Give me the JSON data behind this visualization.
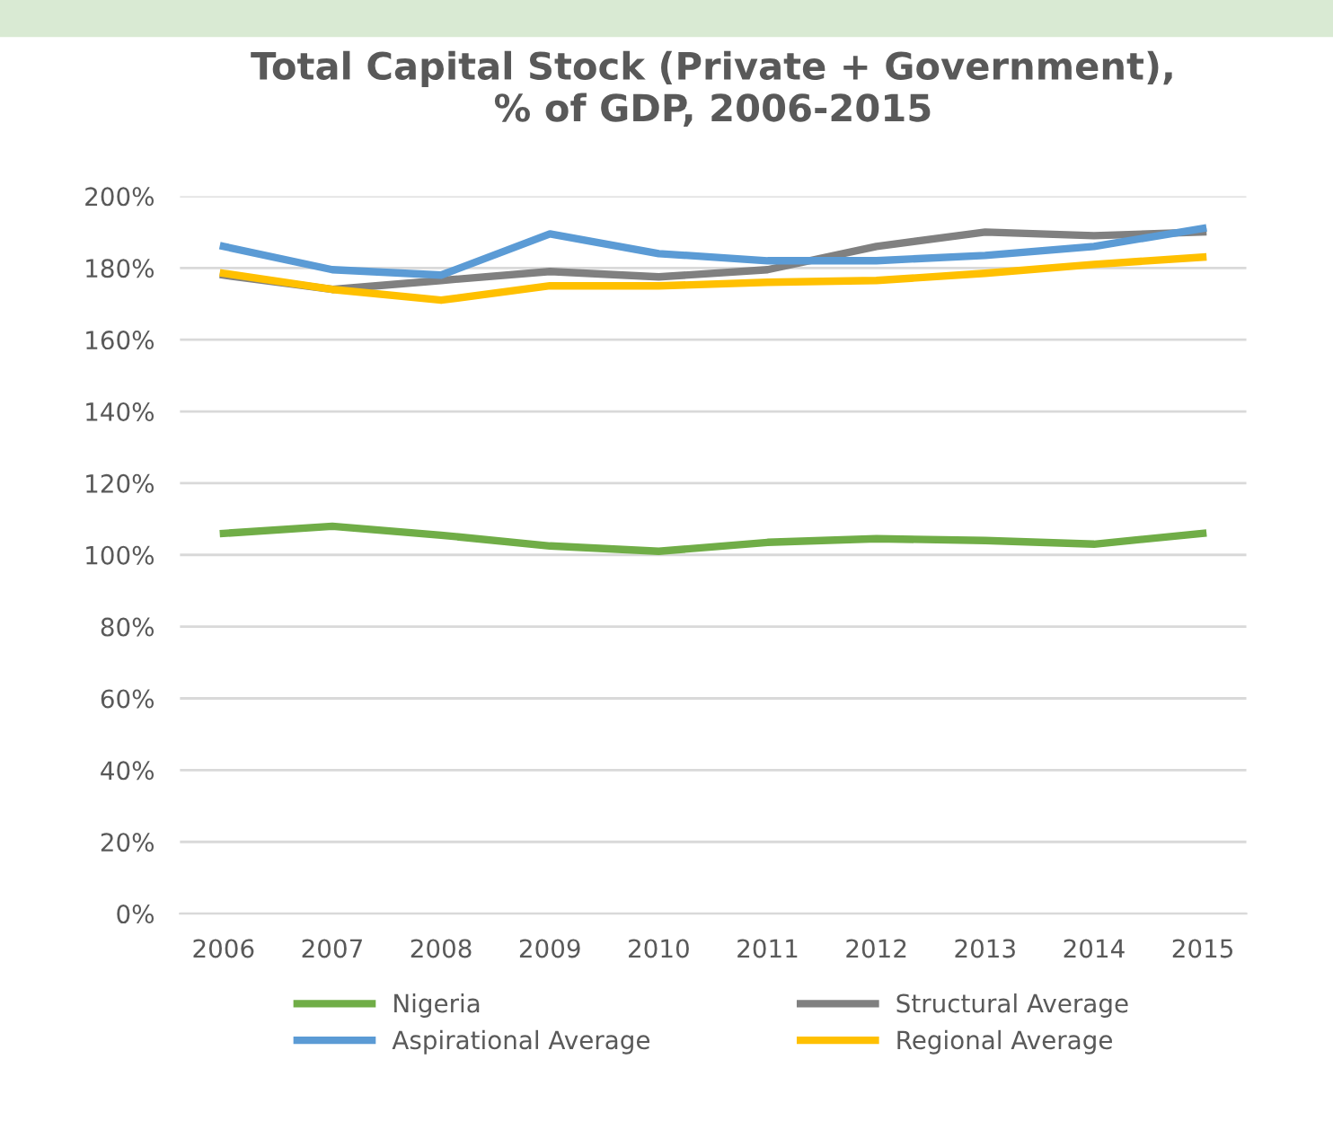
{
  "chart_data": {
    "type": "line",
    "title": "Total Capital Stock (Private + Government),\n% of GDP, 2006-2015",
    "categories": [
      "2006",
      "2007",
      "2008",
      "2009",
      "2010",
      "2011",
      "2012",
      "2013",
      "2014",
      "2015"
    ],
    "series": [
      {
        "name": "Nigeria",
        "color": "#70ad47",
        "values": [
          106,
          108,
          105.5,
          102.5,
          101,
          103.5,
          104.5,
          104,
          103,
          106
        ]
      },
      {
        "name": "Structural Average",
        "color": "#808080",
        "values": [
          178,
          174,
          176.5,
          179,
          177.5,
          179.5,
          186,
          190,
          189,
          190
        ]
      },
      {
        "name": "Aspirational Average",
        "color": "#5b9bd5",
        "values": [
          186,
          179.5,
          178,
          189.5,
          184,
          182,
          182,
          183.5,
          186,
          191
        ]
      },
      {
        "name": "Regional Average",
        "color": "#ffc000",
        "values": [
          178.5,
          174,
          171,
          175,
          175,
          176,
          176.5,
          178.5,
          181,
          183
        ]
      }
    ],
    "ylim": [
      0,
      200
    ],
    "yticks": [
      {
        "value": 0,
        "label": "0%"
      },
      {
        "value": 20,
        "label": "20%"
      },
      {
        "value": 40,
        "label": "40%"
      },
      {
        "value": 60,
        "label": "60%"
      },
      {
        "value": 80,
        "label": "80%"
      },
      {
        "value": 100,
        "label": "100%"
      },
      {
        "value": 120,
        "label": "120%"
      },
      {
        "value": 140,
        "label": "140%"
      },
      {
        "value": 160,
        "label": "160%"
      },
      {
        "value": 180,
        "label": "180%"
      },
      {
        "value": 200,
        "label": "200%"
      }
    ],
    "grid": "y",
    "legend": "bottom",
    "marker": "none",
    "line_style": "solid"
  }
}
